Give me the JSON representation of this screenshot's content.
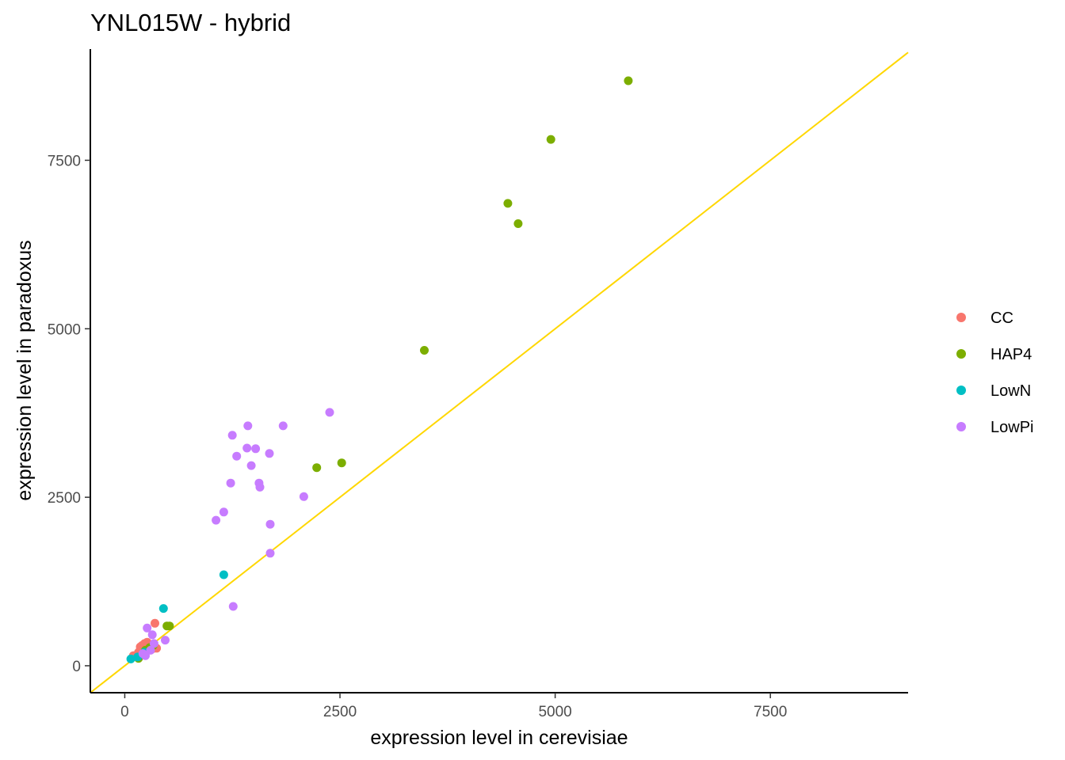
{
  "chart_data": {
    "type": "scatter",
    "title": "YNL015W - hybrid",
    "xlabel": "expression level in cerevisiae",
    "ylabel": "expression level in paradoxus",
    "xlim": [
      -400,
      9100
    ],
    "ylim": [
      -400,
      9150
    ],
    "xticks": [
      0,
      2500,
      5000,
      7500
    ],
    "yticks": [
      0,
      2500,
      5000,
      7500
    ],
    "xtick_labels": [
      "0",
      "2500",
      "5000",
      "7500"
    ],
    "ytick_labels": [
      "0",
      "2500",
      "5000",
      "7500"
    ],
    "grid": false,
    "legend_position": "right",
    "reference_line": {
      "type": "identity",
      "slope": 1,
      "intercept": 0,
      "color": "#FFD700"
    },
    "series": [
      {
        "name": "CC",
        "color": "#F8766D",
        "points": [
          [
            100,
            150
          ],
          [
            140,
            160
          ],
          [
            180,
            280
          ],
          [
            200,
            300
          ],
          [
            230,
            330
          ],
          [
            260,
            350
          ],
          [
            290,
            300
          ],
          [
            320,
            250
          ],
          [
            350,
            630
          ],
          [
            370,
            260
          ],
          [
            160,
            200
          ],
          [
            210,
            240
          ]
        ]
      },
      {
        "name": "HAP4",
        "color": "#7CAE00",
        "points": [
          [
            5850,
            8680
          ],
          [
            4950,
            7810
          ],
          [
            4450,
            6860
          ],
          [
            4570,
            6560
          ],
          [
            3480,
            4680
          ],
          [
            2520,
            3010
          ],
          [
            2230,
            2940
          ],
          [
            490,
            590
          ],
          [
            520,
            590
          ],
          [
            160,
            110
          ],
          [
            240,
            230
          ],
          [
            290,
            270
          ],
          [
            330,
            300
          ]
        ]
      },
      {
        "name": "LowN",
        "color": "#00BFC4",
        "points": [
          [
            450,
            850
          ],
          [
            1150,
            1350
          ],
          [
            70,
            100
          ],
          [
            150,
            130
          ],
          [
            230,
            200
          ]
        ]
      },
      {
        "name": "LowPi",
        "color": "#C77CFF",
        "points": [
          [
            2380,
            3760
          ],
          [
            1430,
            3560
          ],
          [
            1840,
            3560
          ],
          [
            1250,
            3420
          ],
          [
            1420,
            3230
          ],
          [
            1520,
            3220
          ],
          [
            1680,
            3150
          ],
          [
            1300,
            3110
          ],
          [
            1470,
            2970
          ],
          [
            1230,
            2710
          ],
          [
            1560,
            2710
          ],
          [
            1570,
            2650
          ],
          [
            2080,
            2510
          ],
          [
            1150,
            2280
          ],
          [
            1060,
            2160
          ],
          [
            1690,
            2100
          ],
          [
            1690,
            1670
          ],
          [
            1260,
            880
          ],
          [
            260,
            560
          ],
          [
            320,
            460
          ],
          [
            470,
            380
          ],
          [
            300,
            230
          ],
          [
            240,
            150
          ],
          [
            210,
            180
          ],
          [
            340,
            330
          ]
        ]
      }
    ]
  }
}
